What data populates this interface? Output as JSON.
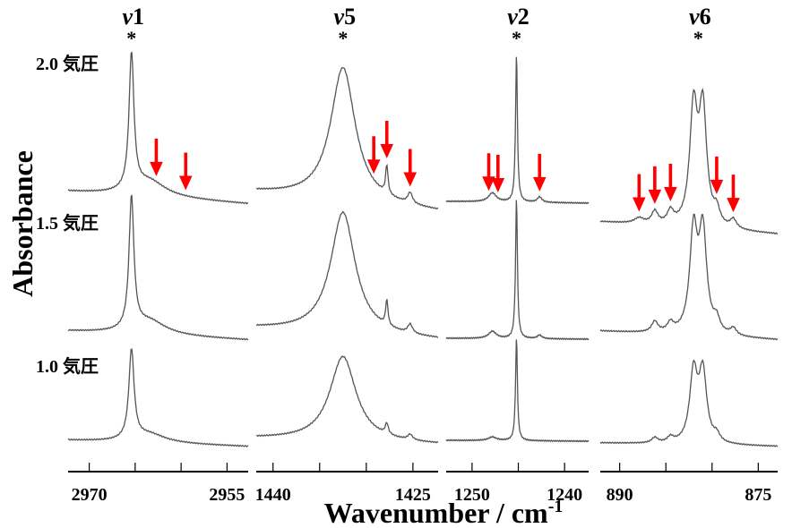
{
  "chart_data": {
    "type": "line",
    "title": "",
    "xlabel": "Wavenumber / cm",
    "xlabel_sup": "-1",
    "ylabel": "Absorbance",
    "grid": false,
    "yunit": "arbitrary (stacked)",
    "ylim": [
      0,
      4.8
    ],
    "pressure_labels": [
      {
        "text": "2.0 気圧",
        "trace": 0
      },
      {
        "text": "1.5 気圧",
        "trace": 1
      },
      {
        "text": "1.0 気圧",
        "trace": 2
      }
    ],
    "arrow_color": "#ff0000",
    "trace_color": "#555555",
    "panels": [
      {
        "mode": "ν1",
        "mode_sym": "ν",
        "mode_num": "1",
        "star": "*",
        "star_x": 2965.4,
        "xlim": [
          2972.3,
          2952.7
        ],
        "ticks": [
          2970,
          2965,
          2960,
          2955
        ],
        "tick_labels": [
          "2970",
          "",
          "",
          "2955"
        ],
        "arrows": [
          2962.7,
          2959.5
        ],
        "traces": [
          {
            "base": [
              3.13,
              2.99
            ],
            "peaks": [
              [
                2965.4,
                1.52,
                0.32
              ],
              [
                2963.5,
                0.18,
                2.2
              ]
            ]
          },
          {
            "base": [
              1.57,
              1.47
            ],
            "peaks": [
              [
                2965.4,
                1.47,
                0.32
              ],
              [
                2963.5,
                0.16,
                2.2
              ]
            ]
          },
          {
            "base": [
              0.35,
              0.28
            ],
            "peaks": [
              [
                2965.4,
                1.0,
                0.34
              ],
              [
                2963.5,
                0.1,
                2.2
              ]
            ]
          }
        ]
      },
      {
        "mode": "ν5",
        "mode_sym": "ν",
        "mode_num": "5",
        "star": "*",
        "star_x": 1432.5,
        "xlim": [
          1441.8,
          1422.3
        ],
        "ticks": [
          1440,
          1435,
          1430,
          1425
        ],
        "tick_labels": [
          "1440",
          "",
          "",
          "1425"
        ],
        "arrows": [
          1429.2,
          1427.8,
          1425.3
        ],
        "traces": [
          {
            "base": [
              3.12,
              2.9
            ],
            "peaks": [
              [
                1432.5,
                1.5,
                1.6
              ],
              [
                1427.8,
                0.32,
                0.15
              ],
              [
                1425.3,
                0.12,
                0.3
              ]
            ]
          },
          {
            "base": [
              1.6,
              1.47
            ],
            "peaks": [
              [
                1432.5,
                1.36,
                1.6
              ],
              [
                1427.8,
                0.28,
                0.15
              ],
              [
                1425.3,
                0.1,
                0.3
              ]
            ]
          },
          {
            "base": [
              0.37,
              0.3
            ],
            "peaks": [
              [
                1432.5,
                0.95,
                1.7
              ],
              [
                1427.8,
                0.12,
                0.2
              ],
              [
                1425.3,
                0.06,
                0.3
              ]
            ]
          }
        ]
      },
      {
        "mode": "ν2",
        "mode_sym": "ν",
        "mode_num": "2",
        "star": "*",
        "star_x": 1245.2,
        "xlim": [
          1252.8,
          1237.4
        ],
        "ticks": [
          1250,
          1245,
          1240
        ],
        "tick_labels": [
          "1250",
          "",
          "1240"
        ],
        "arrows": [
          1248.2,
          1247.2,
          1242.7
        ],
        "traces": [
          {
            "base": [
              3.02,
              3.0
            ],
            "peaks": [
              [
                1245.2,
                1.66,
                0.12
              ],
              [
                1247.8,
                0.1,
                0.5
              ],
              [
                1242.7,
                0.06,
                0.3
              ]
            ]
          },
          {
            "base": [
              1.49,
              1.48
            ],
            "peaks": [
              [
                1245.2,
                1.58,
                0.12
              ],
              [
                1247.8,
                0.08,
                0.5
              ],
              [
                1242.7,
                0.04,
                0.3
              ]
            ]
          },
          {
            "base": [
              0.35,
              0.34
            ],
            "peaks": [
              [
                1245.2,
                1.16,
                0.12
              ],
              [
                1247.8,
                0.04,
                0.5
              ]
            ]
          }
        ]
      },
      {
        "mode": "ν6",
        "mode_sym": "ν",
        "mode_num": "6",
        "star": "*",
        "star_x": 881.5,
        "xlim": [
          892.1,
          872.9
        ],
        "ticks": [
          890,
          885,
          880,
          875
        ],
        "tick_labels": [
          "890",
          "",
          "",
          "875"
        ],
        "arrows": [
          887.9,
          886.2,
          884.5,
          879.5,
          877.7
        ],
        "traces": [
          {
            "base": [
              2.79,
              2.65
            ],
            "peaks": [
              [
                882.0,
                1.28,
                0.5
              ],
              [
                881.0,
                1.28,
                0.5
              ],
              [
                886.2,
                0.14,
                0.4
              ],
              [
                884.5,
                0.14,
                0.4
              ],
              [
                879.5,
                0.16,
                0.4
              ],
              [
                877.7,
                0.1,
                0.4
              ],
              [
                887.9,
                0.06,
                0.6
              ]
            ]
          },
          {
            "base": [
              1.57,
              1.47
            ],
            "peaks": [
              [
                882.0,
                1.12,
                0.5
              ],
              [
                881.0,
                1.12,
                0.5
              ],
              [
                886.2,
                0.12,
                0.4
              ],
              [
                884.5,
                0.1,
                0.4
              ],
              [
                879.5,
                0.14,
                0.4
              ],
              [
                877.7,
                0.08,
                0.4
              ]
            ]
          },
          {
            "base": [
              0.32,
              0.28
            ],
            "peaks": [
              [
                882.0,
                0.78,
                0.5
              ],
              [
                881.0,
                0.78,
                0.5
              ],
              [
                886.2,
                0.06,
                0.4
              ],
              [
                884.5,
                0.06,
                0.4
              ],
              [
                879.5,
                0.08,
                0.4
              ]
            ]
          }
        ]
      }
    ]
  }
}
